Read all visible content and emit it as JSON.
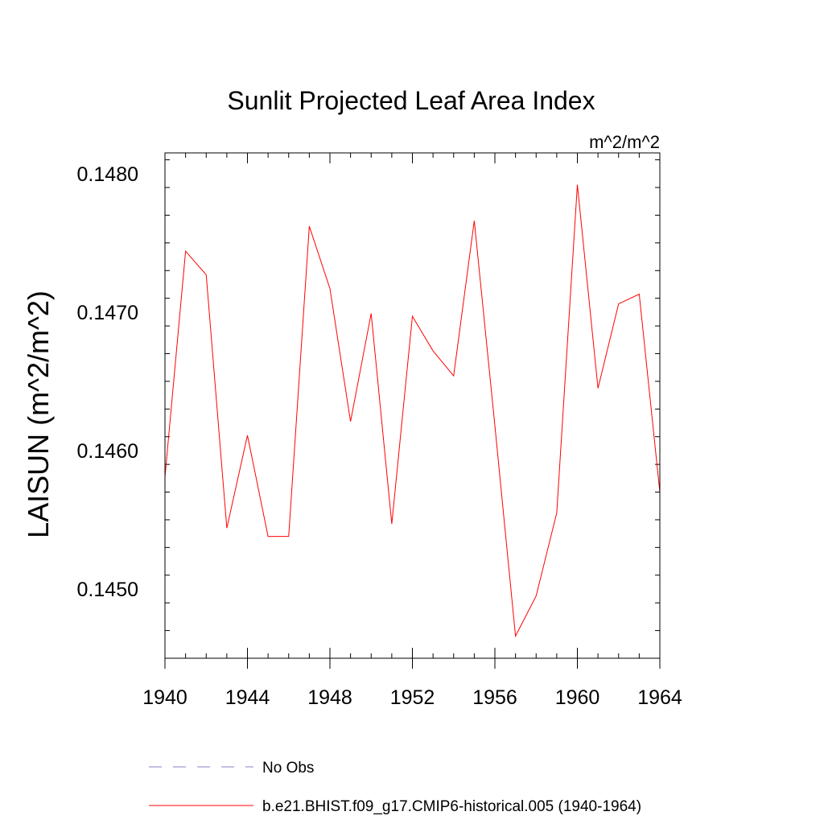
{
  "chart_data": {
    "type": "line",
    "title": "Sunlit Projected Leaf Area Index",
    "units_label": "m^2/m^2",
    "xlabel": "",
    "ylabel": "LAISUN  (m^2/m^2)",
    "xlim": [
      1940,
      1964
    ],
    "ylim": [
      0.1445,
      0.14815
    ],
    "x_ticks": [
      "1940",
      "1944",
      "1948",
      "1952",
      "1956",
      "1960",
      "1964"
    ],
    "y_ticks": [
      "0.1450",
      "0.1460",
      "0.1470",
      "0.1480"
    ],
    "grid": false,
    "legend_position": "bottom",
    "series": [
      {
        "name": "No Obs",
        "color": "#8a7fc7",
        "style": "dashed",
        "x": [],
        "values": []
      },
      {
        "name": "b.e21.BHIST.f09_g17.CMIP6-historical.005 (1940-1964)",
        "color": "#ff0000",
        "style": "solid",
        "x": [
          1940,
          1941,
          1942,
          1943,
          1944,
          1945,
          1946,
          1947,
          1948,
          1949,
          1950,
          1951,
          1952,
          1953,
          1954,
          1955,
          1956,
          1957,
          1958,
          1959,
          1960,
          1961,
          1962,
          1963,
          1964
        ],
        "values": [
          0.14581,
          0.14744,
          0.14727,
          0.14544,
          0.14611,
          0.14538,
          0.14538,
          0.14762,
          0.14717,
          0.14621,
          0.14699,
          0.14547,
          0.14697,
          0.14672,
          0.14654,
          0.14766,
          0.14618,
          0.14466,
          0.14495,
          0.14555,
          0.14792,
          0.14645,
          0.14706,
          0.14713,
          0.1457
        ]
      }
    ]
  }
}
